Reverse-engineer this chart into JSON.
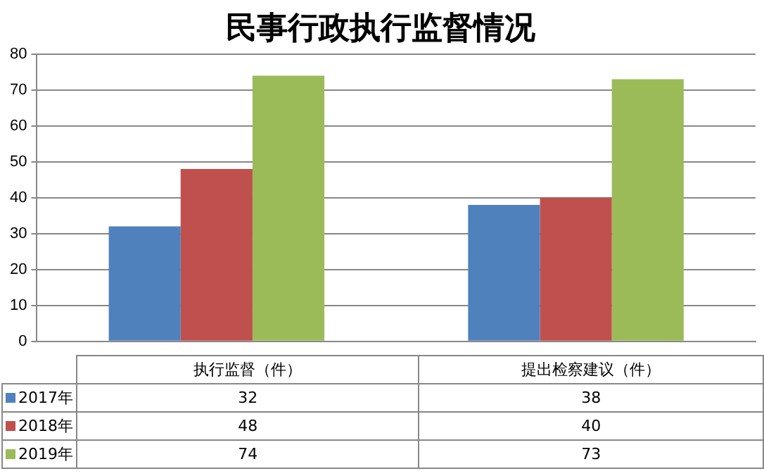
{
  "chart_data": {
    "type": "bar",
    "title": "民事行政执行监督情况",
    "categories": [
      "执行监督（件）",
      "提出检察建议（件）"
    ],
    "series": [
      {
        "name": "2017年",
        "color": "#4f81bd",
        "values": [
          32,
          38
        ]
      },
      {
        "name": "2018年",
        "color": "#c0504d",
        "values": [
          48,
          40
        ]
      },
      {
        "name": "2019年",
        "color": "#9bbb59",
        "values": [
          74,
          73
        ]
      }
    ],
    "ylim": [
      0,
      80
    ],
    "yticks": [
      0,
      10,
      20,
      30,
      40,
      50,
      60,
      70,
      80
    ],
    "grid": "y",
    "legend": "bottom",
    "data_labels": true
  }
}
